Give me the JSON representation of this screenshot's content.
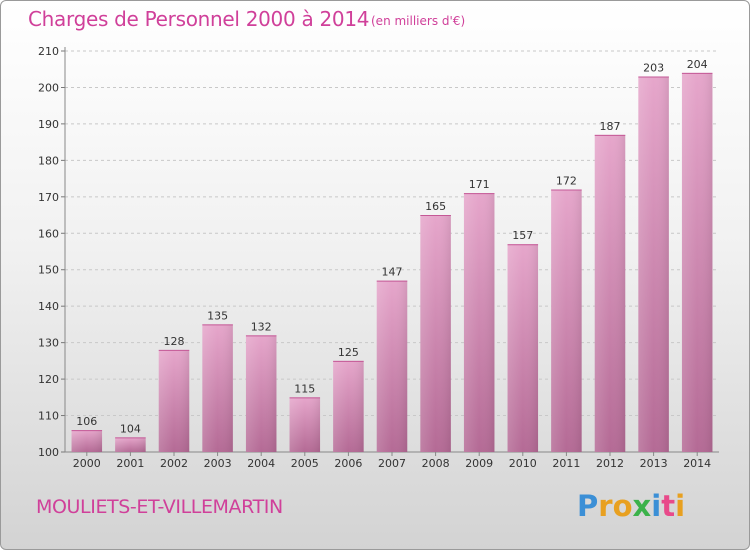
{
  "header": {
    "title": "Charges de Personnel 2000 à 2014",
    "subtitle": "(en milliers d'€)"
  },
  "footer": {
    "town": "MOULIETS-ET-VILLEMARTIN",
    "brand_letters": [
      {
        "ch": "P",
        "color": "#3b8fd6"
      },
      {
        "ch": "r",
        "color": "#e8a020"
      },
      {
        "ch": "o",
        "color": "#e8a020"
      },
      {
        "ch": "x",
        "color": "#3bb24a"
      },
      {
        "ch": "i",
        "color": "#3b8fd6"
      },
      {
        "ch": "t",
        "color": "#e84a8a"
      },
      {
        "ch": "i",
        "color": "#e8a020"
      }
    ]
  },
  "chart_data": {
    "type": "bar",
    "title": "Charges de Personnel 2000 à 2014",
    "subtitle": "(en milliers d'€)",
    "categories": [
      "2000",
      "2001",
      "2002",
      "2003",
      "2004",
      "2005",
      "2006",
      "2007",
      "2008",
      "2009",
      "2010",
      "2011",
      "2012",
      "2013",
      "2014"
    ],
    "values": [
      106,
      104,
      128,
      135,
      132,
      115,
      125,
      147,
      165,
      171,
      157,
      172,
      187,
      203,
      204
    ],
    "ylim": [
      100,
      210
    ],
    "yticks": [
      100,
      110,
      120,
      130,
      140,
      150,
      160,
      170,
      180,
      190,
      200,
      210
    ],
    "grid": true,
    "bar_color": "#d9609f",
    "data_labels": true
  }
}
